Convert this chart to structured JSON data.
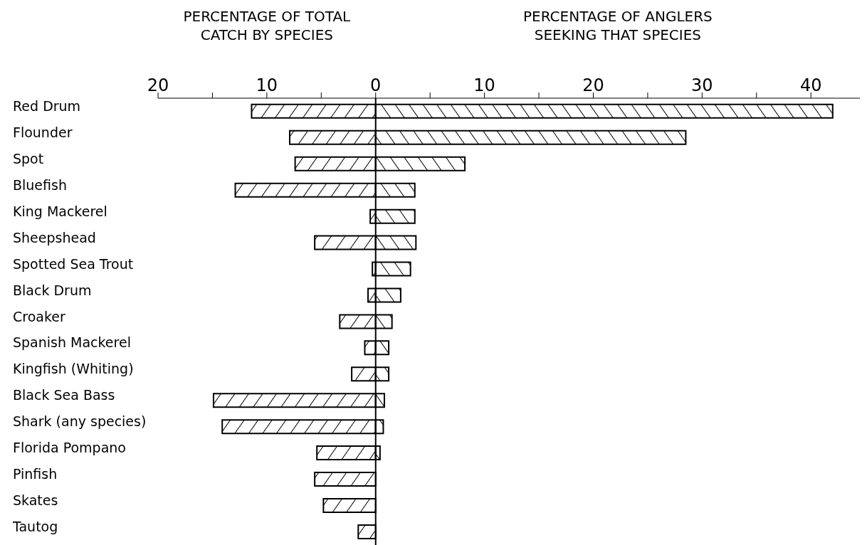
{
  "chart_data": {
    "type": "bar",
    "orientation": "horizontal",
    "stacked": true,
    "categories": [
      "Red Drum",
      "Flounder",
      "Spot",
      "Bluefish",
      "King Mackerel",
      "Sheepshead",
      "Spotted Sea Trout",
      "Black Drum",
      "Croaker",
      "Spanish Mackerel",
      "Kingfish (Whiting)",
      "Black Sea Bass",
      "Shark (any species)",
      "Florida Pompano",
      "Pinfish",
      "Skates",
      "Tautog"
    ],
    "series": [
      {
        "color": "#000000",
        "values": [
          -11.4,
          -7.9,
          -7.4,
          -12.9,
          -0.5,
          -5.6,
          -0.3,
          -0.7,
          -3.3,
          -1.0,
          -2.2,
          -14.9,
          -14.1,
          -5.4,
          -5.6,
          -4.8,
          -1.6
        ]
      },
      {
        "color": "#000000",
        "values": [
          42.0,
          28.5,
          8.2,
          3.6,
          3.6,
          3.7,
          3.2,
          2.3,
          1.5,
          1.2,
          1.2,
          0.8,
          0.7,
          0.4,
          null,
          null,
          null
        ]
      }
    ],
    "xlim": [
      -20,
      44.5
    ],
    "xticks": [
      {
        "value": -20,
        "label": "20"
      },
      {
        "value": -15,
        "label": null
      },
      {
        "value": -10,
        "label": "10"
      },
      {
        "value": -5,
        "label": null
      },
      0,
      {
        "value": 5,
        "label": null
      },
      10,
      {
        "value": 15,
        "label": null
      },
      20,
      {
        "value": 25,
        "label": null
      },
      30,
      {
        "value": 35,
        "label": null
      },
      40
    ],
    "ref_lines": [
      {
        "axis": "x",
        "value": 0
      }
    ],
    "annotations": [
      "PERCENTAGE OF TOTAL CATCH BY SPECIES",
      "PERCENTAGE OF ANGLERS SEEKING THAT SPECIES"
    ]
  }
}
